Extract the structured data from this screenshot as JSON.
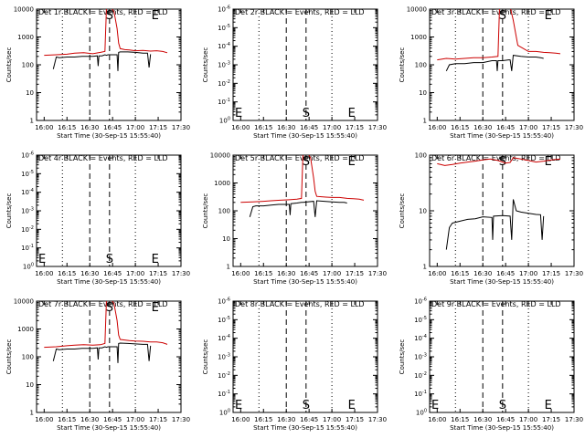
{
  "chart_data": [
    {
      "type": "line",
      "title": "Det 1r BLACK = Events, RED = LLD",
      "ylabel": "Counts/sec",
      "xlabel": "Start Time (30-Sep-15 15:55:40)",
      "ylim": [
        1,
        10000
      ],
      "yscale": "log",
      "ytick_labels": [
        "1",
        "10",
        "100",
        "1000",
        "10000"
      ],
      "xtick_labels": [
        "16:00",
        "16:15",
        "16:30",
        "16:45",
        "17:00",
        "17:15",
        "17:30"
      ],
      "markers": {
        "S": "16:43",
        "E": "17:13"
      },
      "series": [
        {
          "color": "#cc0000",
          "key": "red",
          "x": [
            0,
            8,
            15,
            20,
            26,
            32,
            37,
            40,
            41,
            43,
            44,
            46,
            48,
            49,
            50,
            53,
            56,
            60,
            65,
            70,
            74,
            78,
            81
          ],
          "y": [
            220,
            230,
            240,
            260,
            270,
            250,
            280,
            300,
            12000,
            12000,
            12000,
            8000,
            2000,
            600,
            380,
            350,
            340,
            320,
            330,
            310,
            320,
            300,
            270
          ]
        },
        {
          "color": "#000000",
          "key": "black",
          "x": [
            6,
            8,
            10,
            15,
            20,
            25,
            32,
            35,
            35.5,
            36,
            38,
            40,
            41,
            42,
            48,
            48.5,
            49,
            50,
            55,
            60,
            65,
            68,
            69,
            70
          ],
          "y": [
            70,
            190,
            180,
            190,
            190,
            200,
            200,
            210,
            90,
            210,
            210,
            230,
            220,
            230,
            230,
            60,
            280,
            290,
            290,
            280,
            260,
            260,
            80,
            240
          ]
        }
      ]
    },
    {
      "type": "line",
      "title": "Det 2r BLACK = Events, RED = LLD",
      "ylabel": "Counts/sec",
      "xlabel": "Start Time (30-Sep-15 15:55:40)",
      "ylim": [
        1,
        1e-06
      ],
      "yscale": "log",
      "ytick_labels": [
        "10^0",
        "10^-1",
        "10^-2",
        "10^-3",
        "10^-4",
        "10^-5",
        "10^-6"
      ],
      "xtick_labels": [
        "16:00",
        "16:15",
        "16:30",
        "16:45",
        "17:00",
        "17:15",
        "17:30"
      ],
      "markers": {
        "E": "15:55",
        "S": "16:43",
        "E2": "17:13"
      },
      "series": []
    },
    {
      "type": "line",
      "title": "Det 3r BLACK = Events, RED = LLD",
      "ylabel": "Counts/sec",
      "xlabel": "Start Time (30-Sep-15 15:55:40)",
      "ylim": [
        1,
        10000
      ],
      "yscale": "log",
      "ytick_labels": [
        "1",
        "10",
        "100",
        "1000",
        "10000"
      ],
      "xtick_labels": [
        "16:00",
        "16:15",
        "16:30",
        "16:45",
        "17:00",
        "17:15",
        "17:30"
      ],
      "markers": {
        "S": "16:43",
        "E": "17:13"
      },
      "series": [
        {
          "color": "#cc0000",
          "key": "red",
          "x": [
            0,
            6,
            12,
            18,
            24,
            30,
            36,
            40,
            41,
            43,
            44,
            46,
            47,
            48,
            50,
            53,
            56,
            60,
            65,
            70,
            74,
            78,
            81
          ],
          "y": [
            150,
            170,
            160,
            170,
            180,
            180,
            190,
            200,
            12000,
            12000,
            12000,
            12000,
            12000,
            12000,
            4000,
            500,
            400,
            300,
            300,
            280,
            270,
            260,
            250
          ]
        },
        {
          "color": "#000000",
          "key": "black",
          "x": [
            6,
            8,
            12,
            18,
            24,
            30,
            36,
            39,
            39.5,
            40,
            43,
            47,
            48,
            49,
            50,
            55,
            60,
            65,
            68,
            70
          ],
          "y": [
            60,
            100,
            110,
            110,
            120,
            120,
            140,
            140,
            60,
            140,
            140,
            150,
            150,
            60,
            220,
            200,
            190,
            190,
            180,
            170
          ]
        }
      ]
    },
    {
      "type": "line",
      "title": "Det 4r BLACK = Events, RED = LLD",
      "ylabel": "Counts/sec",
      "xlabel": "Start Time (30-Sep-15 15:55:40)",
      "ylim": [
        1,
        1e-06
      ],
      "yscale": "log",
      "ytick_labels": [
        "10^0",
        "10^-1",
        "10^-2",
        "10^-3",
        "10^-4",
        "10^-5",
        "10^-6"
      ],
      "xtick_labels": [
        "16:00",
        "16:15",
        "16:30",
        "16:45",
        "17:00",
        "17:15",
        "17:30"
      ],
      "markers": {
        "E": "15:55",
        "S": "16:43",
        "E2": "17:13"
      },
      "series": []
    },
    {
      "type": "line",
      "title": "Det 5r BLACK = Events, RED = LLD",
      "ylabel": "Counts/sec",
      "xlabel": "Start Time (30-Sep-15 15:55:40)",
      "ylim": [
        1,
        10000
      ],
      "yscale": "log",
      "ytick_labels": [
        "1",
        "10",
        "100",
        "1000",
        "10000"
      ],
      "xtick_labels": [
        "16:00",
        "16:15",
        "16:30",
        "16:45",
        "17:00",
        "17:15",
        "17:30"
      ],
      "markers": {
        "S": "16:43",
        "E": "17:13"
      },
      "series": [
        {
          "color": "#cc0000",
          "key": "red",
          "x": [
            0,
            8,
            15,
            20,
            26,
            32,
            37,
            40,
            41,
            43,
            44,
            46,
            48,
            49,
            50,
            53,
            56,
            60,
            65,
            70,
            74,
            78,
            81
          ],
          "y": [
            200,
            210,
            220,
            230,
            240,
            250,
            260,
            280,
            12000,
            12000,
            12000,
            8000,
            1500,
            500,
            330,
            320,
            310,
            300,
            300,
            280,
            270,
            260,
            240
          ]
        },
        {
          "color": "#000000",
          "key": "black",
          "x": [
            6,
            8,
            10,
            15,
            20,
            25,
            30,
            32,
            32.5,
            33,
            37,
            40,
            41,
            48,
            49,
            50,
            55,
            60,
            65,
            68,
            70
          ],
          "y": [
            60,
            140,
            150,
            150,
            160,
            170,
            170,
            170,
            70,
            180,
            190,
            200,
            200,
            220,
            60,
            230,
            220,
            210,
            200,
            200,
            190
          ]
        }
      ]
    },
    {
      "type": "line",
      "title": "Det 6r BLACK = Events, RED = LLD",
      "ylabel": "Counts/sec",
      "xlabel": "Start Time (30-Sep-15 15:55:40)",
      "ylim": [
        1,
        100
      ],
      "yscale": "log",
      "ytick_labels": [
        "1",
        "10",
        "100"
      ],
      "xtick_labels": [
        "16:00",
        "16:15",
        "16:30",
        "16:45",
        "17:00",
        "17:15",
        "17:30"
      ],
      "markers": {
        "S": "16:43",
        "E": "17:13"
      },
      "series": [
        {
          "color": "#cc0000",
          "key": "red",
          "x": [
            0,
            5,
            10,
            15,
            20,
            25,
            30,
            35,
            40,
            45,
            48,
            50,
            55,
            60,
            65,
            70,
            75,
            81
          ],
          "y": [
            70,
            65,
            68,
            72,
            75,
            78,
            82,
            85,
            80,
            72,
            74,
            90,
            85,
            80,
            75,
            78,
            82,
            85
          ]
        },
        {
          "color": "#000000",
          "key": "black",
          "x": [
            6,
            8,
            10,
            15,
            20,
            25,
            30,
            36,
            36.5,
            37,
            43,
            48,
            49,
            50,
            52,
            55,
            60,
            65,
            68,
            69,
            70
          ],
          "y": [
            2,
            5,
            6,
            6.5,
            7,
            7.2,
            7.8,
            7.6,
            3,
            8,
            8.2,
            8,
            3,
            16,
            10,
            9.5,
            9,
            8.6,
            8.5,
            3,
            8
          ]
        }
      ]
    },
    {
      "type": "line",
      "title": "Det 7r BLACK = Events, RED = LLD",
      "ylabel": "Counts/sec",
      "xlabel": "Start Time (30-Sep-15 15:55:40)",
      "ylim": [
        1,
        10000
      ],
      "yscale": "log",
      "ytick_labels": [
        "1",
        "10",
        "100",
        "1000",
        "10000"
      ],
      "xtick_labels": [
        "16:00",
        "16:15",
        "16:30",
        "16:45",
        "17:00",
        "17:15",
        "17:30"
      ],
      "markers": {
        "S": "16:43",
        "E": "17:13"
      },
      "series": [
        {
          "color": "#cc0000",
          "key": "red",
          "x": [
            0,
            8,
            15,
            20,
            26,
            32,
            37,
            40,
            41,
            43,
            44,
            46,
            48,
            49,
            50,
            53,
            56,
            60,
            65,
            70,
            74,
            78,
            81
          ],
          "y": [
            220,
            230,
            250,
            260,
            270,
            260,
            270,
            300,
            12000,
            12000,
            12000,
            8000,
            2000,
            600,
            420,
            400,
            380,
            370,
            360,
            340,
            340,
            320,
            280
          ]
        },
        {
          "color": "#000000",
          "key": "black",
          "x": [
            6,
            8,
            10,
            15,
            20,
            25,
            32,
            35,
            35.5,
            36,
            38,
            40,
            41,
            42,
            48,
            48.5,
            49,
            50,
            55,
            60,
            65,
            68,
            69,
            70
          ],
          "y": [
            70,
            190,
            180,
            190,
            190,
            200,
            200,
            210,
            80,
            210,
            210,
            230,
            220,
            230,
            230,
            60,
            300,
            310,
            300,
            290,
            280,
            280,
            70,
            250
          ]
        }
      ]
    },
    {
      "type": "line",
      "title": "Det 8r BLACK = Events, RED = LLD",
      "ylabel": "Counts/sec",
      "xlabel": "Start Time (30-Sep-15 15:55:40)",
      "ylim": [
        1,
        1e-06
      ],
      "yscale": "log",
      "ytick_labels": [
        "10^0",
        "10^-1",
        "10^-2",
        "10^-3",
        "10^-4",
        "10^-5",
        "10^-6"
      ],
      "xtick_labels": [
        "16:00",
        "16:15",
        "16:30",
        "16:45",
        "17:00",
        "17:15",
        "17:30"
      ],
      "markers": {
        "E": "15:55",
        "S": "16:43",
        "E2": "17:13"
      },
      "series": []
    },
    {
      "type": "line",
      "title": "Det 9r BLACK = Events, RED = LLD",
      "ylabel": "Counts/sec",
      "xlabel": "Start Time (30-Sep-15 15:55:40)",
      "ylim": [
        1,
        1e-06
      ],
      "yscale": "log",
      "ytick_labels": [
        "10^0",
        "10^-1",
        "10^-2",
        "10^-3",
        "10^-4",
        "10^-5",
        "10^-6"
      ],
      "xtick_labels": [
        "16:00",
        "16:15",
        "16:30",
        "16:45",
        "17:00",
        "17:15",
        "17:30"
      ],
      "markers": {
        "E": "15:55",
        "S": "16:43",
        "E2": "17:13"
      },
      "series": []
    }
  ]
}
